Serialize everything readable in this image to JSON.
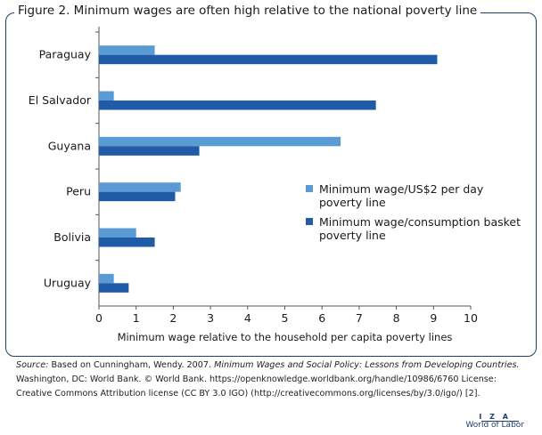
{
  "figure_title": "Figure 2. Minimum wages are often high relative to the national poverty line",
  "chart_data": {
    "type": "bar",
    "orientation": "horizontal",
    "categories": [
      "Paraguay",
      "El Salvador",
      "Guyana",
      "Peru",
      "Bolivia",
      "Uruguay"
    ],
    "series": [
      {
        "name": "Minimum wage/US$2 per day poverty line",
        "values": [
          1.5,
          0.4,
          6.5,
          2.2,
          1.0,
          0.4
        ],
        "color": "#5b9bd5"
      },
      {
        "name": "Minimum wage/consumption basket poverty line",
        "values": [
          9.1,
          7.45,
          2.7,
          2.05,
          1.5,
          0.8
        ],
        "color": "#1f5ba6"
      }
    ],
    "xlabel": "Minimum wage relative to the household per capita poverty lines",
    "ylabel": "",
    "xlim": [
      0,
      10
    ],
    "xticks": [
      "0",
      "1",
      "2",
      "3",
      "4",
      "5",
      "6",
      "7",
      "8",
      "9",
      "10"
    ],
    "grid": false,
    "legend_position": "right",
    "legend": [
      {
        "lines": [
          "Minimum wage/US$2 per day",
          "poverty line"
        ]
      },
      {
        "lines": [
          "Minimum wage/consumption basket",
          "poverty line"
        ]
      }
    ]
  },
  "source": {
    "label": "Source:",
    "text1": " Based on Cunningham, Wendy. 2007. ",
    "title": "Minimum Wages and Social Policy: Lessons from Developing Countries.",
    "text2": " Washington, DC: World Bank. © World Bank. https://openknowledge.worldbank.org/handle/10986/6760 License: Creative Commons Attribution license (CC BY 3.0 IGO) (http://creativecommons.org/licenses/by/3.0/igo/) [2]."
  },
  "logo": {
    "top": "I Z A",
    "bottom": "World of Labor"
  }
}
